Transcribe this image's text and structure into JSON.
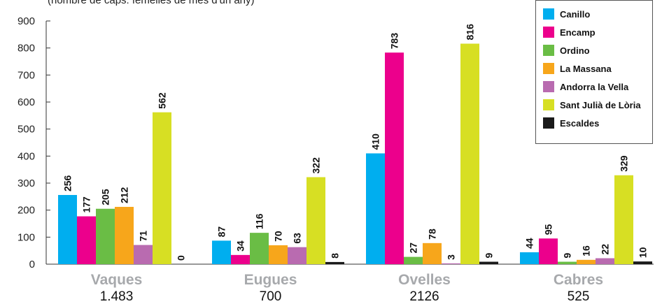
{
  "subtitle": "(nombre de caps: femelles de més d'un any)",
  "chart_data": {
    "type": "bar",
    "ylim": [
      0,
      900
    ],
    "yticks": [
      0,
      100,
      200,
      300,
      400,
      500,
      600,
      700,
      800,
      900
    ],
    "categories": [
      "Vaques",
      "Eugues",
      "Ovelles",
      "Cabres"
    ],
    "totals": [
      "1.483",
      "700",
      "2126",
      "525"
    ],
    "series": [
      {
        "name": "Canillo",
        "color": "#00AEEF",
        "values": [
          256,
          87,
          410,
          44
        ]
      },
      {
        "name": "Encamp",
        "color": "#EC008C",
        "values": [
          177,
          34,
          783,
          95
        ]
      },
      {
        "name": "Ordino",
        "color": "#6ABD45",
        "values": [
          205,
          116,
          27,
          9
        ]
      },
      {
        "name": "La Massana",
        "color": "#F7A61B",
        "values": [
          212,
          70,
          78,
          16
        ]
      },
      {
        "name": "Andorra la Vella",
        "color": "#B96BB0",
        "values": [
          71,
          63,
          3,
          22
        ]
      },
      {
        "name": "Sant Julià de Lòria",
        "color": "#D7DF23",
        "values": [
          562,
          322,
          816,
          329
        ]
      },
      {
        "name": "Escaldes",
        "color": "#1A1A1A",
        "values": [
          0,
          8,
          9,
          10
        ]
      }
    ],
    "grid": false,
    "legend_position": "top-right"
  }
}
